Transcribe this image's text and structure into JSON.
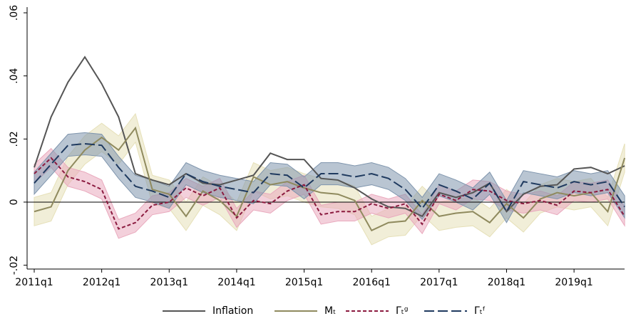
{
  "chart_data": {
    "type": "line",
    "categories": [
      "2011q1",
      null,
      null,
      null,
      "2012q1",
      null,
      null,
      null,
      "2013q1",
      null,
      null,
      null,
      "2014q1",
      null,
      null,
      null,
      "2015q1",
      null,
      null,
      null,
      "2016q1",
      null,
      null,
      null,
      "2017q1",
      null,
      null,
      null,
      "2018q1",
      null,
      null,
      null,
      "2019q1",
      null,
      null,
      null
    ],
    "ylim": [
      -0.02,
      0.06
    ],
    "yticks": [
      {
        "value": -0.02,
        "label": "-.02"
      },
      0,
      {
        "value": 0.02,
        "label": ".02"
      },
      {
        "value": 0.04,
        "label": ".04"
      },
      {
        "value": 0.06,
        "label": ".06"
      }
    ],
    "zero_line": true,
    "legend": "bottom",
    "series": [
      {
        "name": "Inflation",
        "color": "#555555",
        "line_style": "solid",
        "values": [
          0.011,
          0.027,
          0.038,
          0.046,
          0.0375,
          0.027,
          0.009,
          0.007,
          0.0055,
          0.009,
          0.006,
          0.0055,
          0.007,
          0.0085,
          0.0155,
          0.0135,
          0.0135,
          0.0075,
          0.007,
          0.0045,
          0.001,
          -0.0015,
          -0.002,
          -0.0045,
          0.003,
          0.0015,
          0.003,
          0.006,
          -0.003,
          0.0025,
          0.005,
          0.0055,
          0.0105,
          0.011,
          0.009,
          0.0115
        ]
      },
      {
        "name": "Mₜ",
        "color": "#8f8a5e",
        "band_color": "#e6e0b8",
        "line_style": "solid",
        "values": [
          -0.003,
          -0.0015,
          0.01,
          0.0165,
          0.0205,
          0.0165,
          0.0235,
          0.004,
          0.0025,
          -0.0045,
          0.0035,
          0.0005,
          -0.0045,
          0.008,
          0.0055,
          0.0065,
          0.0045,
          0.003,
          0.0025,
          0.0005,
          -0.009,
          -0.0065,
          -0.006,
          0.0005,
          -0.0045,
          -0.0035,
          -0.003,
          -0.0065,
          -0.0005,
          -0.005,
          0.001,
          0.003,
          0.002,
          0.003,
          -0.003,
          0.014
        ],
        "ci_lower": [
          -0.0075,
          -0.006,
          0.0055,
          0.012,
          0.016,
          0.012,
          0.019,
          -0.0005,
          -0.002,
          -0.009,
          -0.001,
          -0.004,
          -0.009,
          0.0035,
          0.001,
          0.002,
          0.0,
          -0.0015,
          -0.002,
          -0.004,
          -0.0135,
          -0.011,
          -0.0105,
          -0.004,
          -0.009,
          -0.008,
          -0.0075,
          -0.011,
          -0.005,
          -0.0095,
          -0.0035,
          -0.0015,
          -0.0025,
          -0.0015,
          -0.0075,
          0.0095
        ],
        "ci_upper": [
          0.0015,
          0.003,
          0.0145,
          0.021,
          0.025,
          0.021,
          0.028,
          0.0085,
          0.007,
          0.0,
          0.008,
          0.005,
          0.0,
          0.0125,
          0.01,
          0.011,
          0.009,
          0.0075,
          0.007,
          0.005,
          -0.0045,
          -0.002,
          -0.0015,
          0.005,
          0.0,
          0.001,
          0.0015,
          -0.002,
          0.004,
          -0.0005,
          0.0055,
          0.0075,
          0.0065,
          0.0075,
          0.0015,
          0.0185
        ]
      },
      {
        "name": "Γₜᵍ",
        "color": "#8b1a3f",
        "band_color": "#e9a9bd",
        "line_style": "short",
        "values": [
          0.009,
          0.014,
          0.008,
          0.0065,
          0.004,
          -0.0085,
          -0.0065,
          -0.001,
          0,
          0.0045,
          0.002,
          0.0045,
          -0.005,
          0.0005,
          -0.0005,
          0.0035,
          0.0055,
          -0.004,
          -0.003,
          -0.003,
          -0.0005,
          -0.002,
          -0.0005,
          -0.007,
          0.0025,
          0.0005,
          0.004,
          0.0035,
          0.0005,
          -0.0005,
          0.0005,
          -0.001,
          0.0035,
          0.003,
          0.004,
          -0.0045
        ],
        "ci_lower": [
          0.006,
          0.011,
          0.005,
          0.0035,
          0.001,
          -0.0115,
          -0.0095,
          -0.004,
          -0.003,
          0.0015,
          -0.001,
          0.0015,
          -0.008,
          -0.0025,
          -0.0035,
          0.0005,
          0.0025,
          -0.007,
          -0.006,
          -0.006,
          -0.0035,
          -0.005,
          -0.0035,
          -0.01,
          -0.0005,
          -0.0025,
          0.001,
          0.0005,
          -0.0025,
          -0.0035,
          -0.0025,
          -0.004,
          0.0005,
          0.0,
          0.001,
          -0.0075
        ],
        "ci_upper": [
          0.012,
          0.017,
          0.011,
          0.0095,
          0.007,
          -0.0055,
          -0.0035,
          0.002,
          0.003,
          0.0075,
          0.005,
          0.0075,
          -0.002,
          0.0035,
          0.0025,
          0.0065,
          0.0085,
          -0.001,
          0.0,
          0.0,
          0.0025,
          0.001,
          0.0025,
          -0.004,
          0.0055,
          0.0035,
          0.007,
          0.0065,
          0.0035,
          0.0025,
          0.0035,
          0.002,
          0.0065,
          0.006,
          0.007,
          -0.0015
        ]
      },
      {
        "name": "Γₜᶠ",
        "color": "#1f3a5f",
        "band_color": "#7f95ad",
        "line_style": "long",
        "values": [
          0.006,
          0.012,
          0.018,
          0.0185,
          0.018,
          0.011,
          0.005,
          0.0035,
          0.0015,
          0.009,
          0.0065,
          0.005,
          0.004,
          0.003,
          0.009,
          0.0085,
          0.0045,
          0.009,
          0.009,
          0.008,
          0.009,
          0.0075,
          0.004,
          -0.002,
          0.0055,
          0.0035,
          0.001,
          0.006,
          -0.003,
          0.0065,
          0.0055,
          0.0045,
          0.0065,
          0.0055,
          0.0065,
          -0.0015
        ],
        "ci_lower": [
          0.0025,
          0.0085,
          0.0145,
          0.015,
          0.0145,
          0.0075,
          0.0015,
          0.0,
          -0.002,
          0.0055,
          0.003,
          0.0015,
          0.0005,
          -0.0005,
          0.0055,
          0.005,
          0.001,
          0.0055,
          0.0055,
          0.0045,
          0.0055,
          0.004,
          0.0005,
          -0.0055,
          0.002,
          0.0,
          -0.0025,
          0.0025,
          -0.0065,
          0.003,
          0.002,
          0.001,
          0.003,
          0.002,
          0.003,
          -0.005
        ],
        "ci_upper": [
          0.0095,
          0.0155,
          0.0215,
          0.022,
          0.0215,
          0.0145,
          0.0085,
          0.007,
          0.005,
          0.0125,
          0.01,
          0.0085,
          0.0075,
          0.0065,
          0.0125,
          0.012,
          0.008,
          0.0125,
          0.0125,
          0.0115,
          0.0125,
          0.011,
          0.0075,
          0.0015,
          0.009,
          0.007,
          0.0045,
          0.0095,
          0.0005,
          0.01,
          0.009,
          0.008,
          0.01,
          0.009,
          0.01,
          0.002
        ]
      }
    ]
  }
}
